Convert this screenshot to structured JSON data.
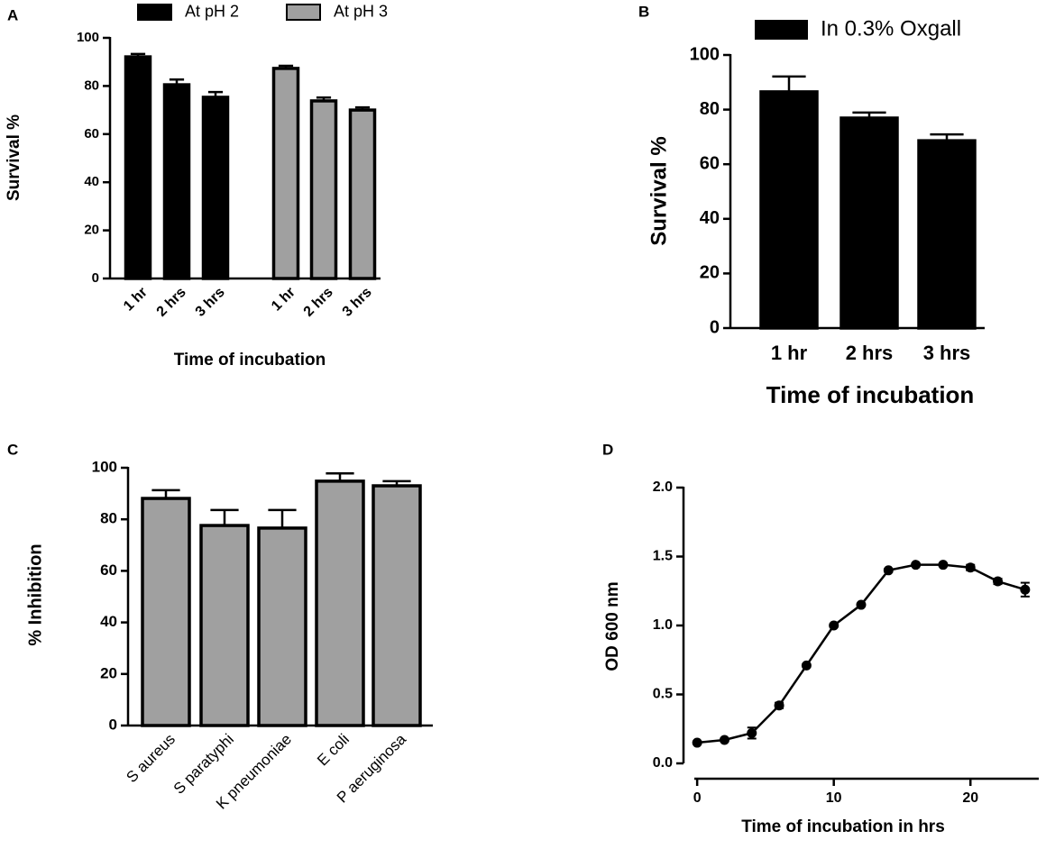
{
  "chart_data": [
    {
      "type": "bar",
      "panel": "A",
      "categories": [
        "1 hr",
        "2 hrs",
        "3 hrs"
      ],
      "series": [
        {
          "name": "At pH 2",
          "color": "#000000",
          "values": [
            92.1,
            80.5,
            75.3
          ],
          "errors": [
            1.2,
            2.2,
            2.2
          ]
        },
        {
          "name": "At pH 3",
          "color": "#a0a0a0",
          "values": [
            87.3,
            73.8,
            70
          ],
          "errors": [
            1.1,
            1.4,
            1.1
          ]
        }
      ],
      "ylim": [
        0,
        100
      ],
      "yticks": [
        0,
        20,
        40,
        60,
        80,
        100
      ],
      "y_label": "Survival %",
      "x_label": "Time of incubation"
    },
    {
      "type": "bar",
      "panel": "B",
      "categories": [
        "1 hr",
        "2 hrs",
        "3 hrs"
      ],
      "series": [
        {
          "name": "In 0.3% Oxgall",
          "color": "#000000",
          "values": [
            86.5,
            76.9,
            68.6
          ],
          "errors": [
            5.6,
            2,
            2.3
          ]
        }
      ],
      "ylim": [
        0,
        100
      ],
      "yticks": [
        0,
        20,
        40,
        60,
        80,
        100
      ],
      "y_label": "Survival %",
      "x_label": "Time of incubation"
    },
    {
      "type": "bar",
      "panel": "C",
      "categories": [
        "S aureus",
        "S paratyphi",
        "K pneumoniae",
        "E coli",
        "P aeruginosa"
      ],
      "series": [
        {
          "color": "#a0a0a0",
          "values": [
            88.1,
            77.6,
            76.6,
            94.8,
            93
          ],
          "errors": [
            3.2,
            6,
            7,
            3,
            1.8
          ]
        }
      ],
      "ylim": [
        0,
        100
      ],
      "yticks": [
        0,
        20,
        40,
        60,
        80,
        100
      ],
      "y_label": "% Inhibition"
    },
    {
      "type": "line",
      "panel": "D",
      "x": [
        0,
        2,
        4,
        6,
        8,
        10,
        12,
        14,
        16,
        18,
        20,
        22,
        24
      ],
      "values": [
        0.15,
        0.17,
        0.22,
        0.42,
        0.71,
        1.0,
        1.15,
        1.4,
        1.44,
        1.44,
        1.42,
        1.32,
        1.26
      ],
      "errors": [
        0.01,
        0.01,
        0.04,
        0.02,
        0.01,
        0.01,
        0.01,
        0.01,
        0.01,
        0.01,
        0.02,
        0.02,
        0.05
      ],
      "color": "#000000",
      "xlim": [
        -1,
        25
      ],
      "xticks": [
        0,
        10,
        20
      ],
      "ylim": [
        0,
        2
      ],
      "yticks": [
        {
          "value": 0,
          "label": "0.0"
        },
        {
          "value": 0.5,
          "label": "0.5"
        },
        {
          "value": 1,
          "label": "1.0"
        },
        {
          "value": 1.5,
          "label": "1.5"
        },
        {
          "value": 2,
          "label": "2.0"
        }
      ],
      "y_label": "OD 600 nm",
      "x_label": "Time of incubation in hrs"
    }
  ]
}
